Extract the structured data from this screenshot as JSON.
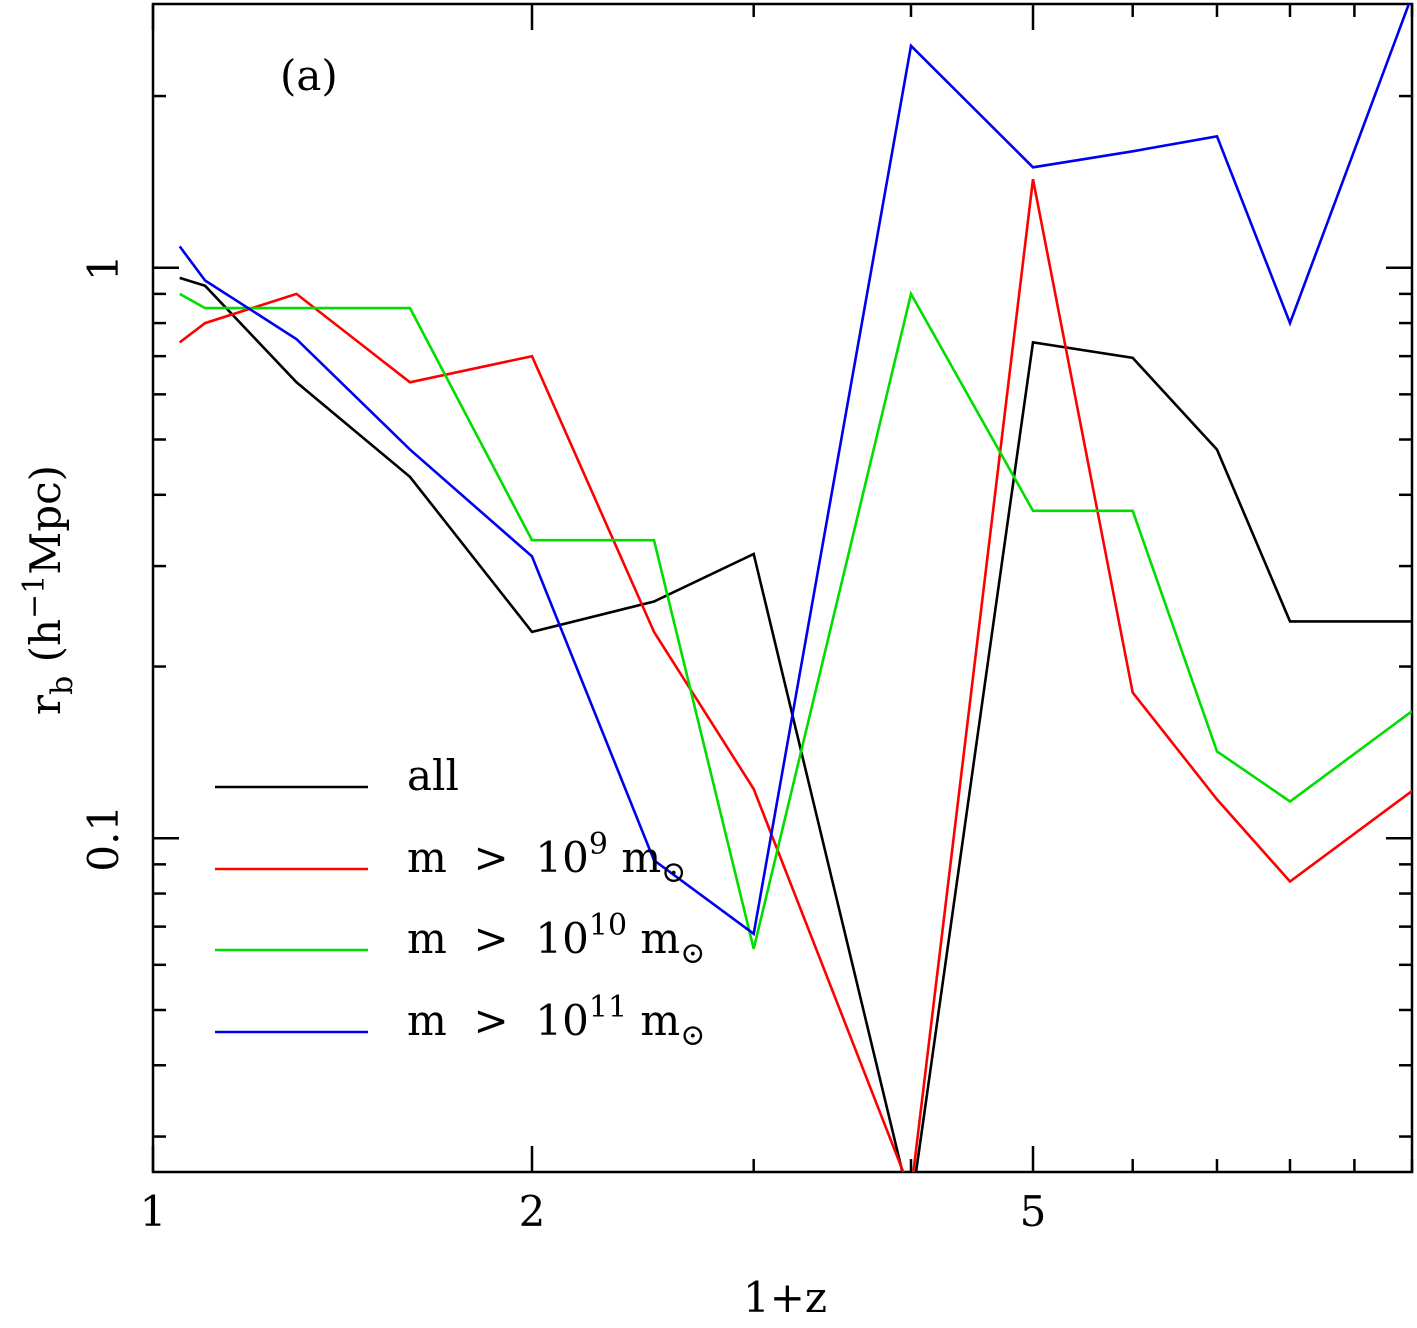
{
  "chart_data": {
    "type": "line",
    "panel_label": "(a)",
    "xlabel": "1+z",
    "ylabel": {
      "symbol": "r",
      "subscript": "b",
      "open": " (h",
      "superscript": "−1",
      "close": "Mpc)"
    },
    "xscale": "log",
    "yscale": "log",
    "xlim": [
      1,
      10
    ],
    "ylim": [
      0.026,
      2.9
    ],
    "x_ticks": [
      {
        "value": 1,
        "label": "1"
      },
      {
        "value": 2,
        "label": "2"
      },
      {
        "value": 5,
        "label": "5"
      }
    ],
    "y_ticks": [
      {
        "value": 0.1,
        "label": "0.1"
      },
      {
        "value": 1,
        "label": "1"
      }
    ],
    "x": [
      1.05,
      1.1,
      1.3,
      1.6,
      2.0,
      2.5,
      3.0,
      4.0,
      5.0,
      6.0,
      7.0,
      8.0,
      10.0
    ],
    "series": [
      {
        "name": "all",
        "label": "all",
        "color": "#000000",
        "values": [
          0.96,
          0.93,
          0.63,
          0.43,
          0.23,
          0.26,
          0.315,
          0.0225,
          0.74,
          0.695,
          0.48,
          0.24,
          0.24
        ]
      },
      {
        "name": "m > 10^9 m_sun",
        "label": {
          "base": "m  >  10",
          "exp": "9",
          "tail": " m",
          "sub": "⊙"
        },
        "color": "#ff0000",
        "values": [
          0.74,
          0.8,
          0.9,
          0.63,
          0.7,
          0.23,
          0.122,
          0.024,
          1.43,
          0.18,
          0.117,
          0.084,
          0.121
        ]
      },
      {
        "name": "m > 10^10 m_sun",
        "label": {
          "base": "m  >  10",
          "exp": "10",
          "tail": " m",
          "sub": "⊙"
        },
        "color": "#00dd00",
        "values": [
          0.9,
          0.85,
          0.85,
          0.85,
          0.333,
          0.333,
          0.064,
          0.9,
          0.375,
          0.375,
          0.142,
          0.116,
          0.167
        ]
      },
      {
        "name": "m > 10^11 m_sun",
        "label": {
          "base": "m  >  10",
          "exp": "11",
          "tail": " m",
          "sub": "⊙"
        },
        "color": "#0000ee",
        "values": [
          1.09,
          0.95,
          0.75,
          0.48,
          0.312,
          0.0915,
          0.068,
          2.45,
          1.5,
          1.6,
          1.7,
          0.8,
          3.0
        ]
      }
    ],
    "legend_position": "bottom-left",
    "grid": false
  }
}
